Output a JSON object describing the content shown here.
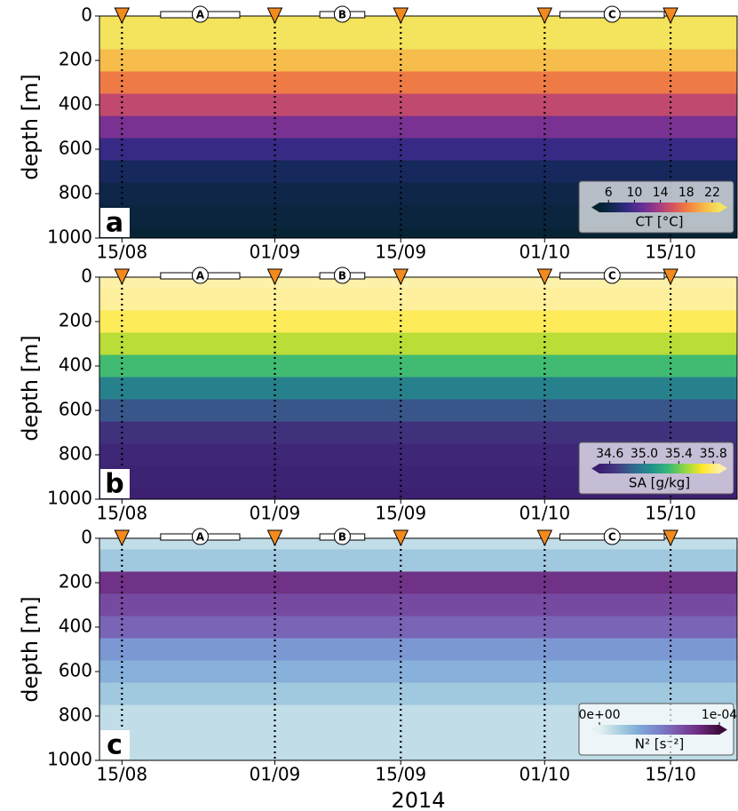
{
  "chart_data": [
    {
      "type": "heatmap",
      "panel_label": "a",
      "ylabel": "depth [m]",
      "xlim": [
        224.5,
        295.4
      ],
      "xticks": [
        {
          "value": 227,
          "label": "15/08"
        },
        {
          "value": 244,
          "label": "01/09"
        },
        {
          "value": 258,
          "label": "15/09"
        },
        {
          "value": 274,
          "label": "01/10"
        },
        {
          "value": 288,
          "label": "15/10"
        }
      ],
      "ylim": [
        0,
        1000
      ],
      "invert_y": true,
      "yticks": [
        0,
        200,
        400,
        600,
        800,
        1000
      ],
      "y": [
        0,
        100,
        200,
        300,
        400,
        500,
        600,
        700,
        800,
        900,
        1000
      ],
      "values": [
        24,
        23.5,
        21,
        18,
        15,
        12,
        9,
        7,
        6,
        5.5,
        5
      ],
      "events": [
        227,
        244,
        258,
        274,
        288
      ],
      "periods": [
        {
          "label": "A",
          "start": 231.3,
          "end": 240.1
        },
        {
          "label": "B",
          "start": 249,
          "end": 254
        },
        {
          "label": "C",
          "start": 275.7,
          "end": 287.3
        }
      ],
      "colorbar": {
        "label": "CT [°C]",
        "clim": [
          4.6,
          23.1
        ],
        "ticks": [
          6,
          10,
          14,
          18,
          22
        ],
        "colormap": [
          "#04232e",
          "#16285a",
          "#3b2a8a",
          "#6e2f95",
          "#a53d80",
          "#d9575a",
          "#f3843f",
          "#f6b94a",
          "#f3e35d"
        ]
      }
    },
    {
      "type": "heatmap",
      "panel_label": "b",
      "ylabel": "depth [m]",
      "xlim": [
        224.5,
        295.4
      ],
      "xticks": [
        {
          "value": 227,
          "label": "15/08"
        },
        {
          "value": 244,
          "label": "01/09"
        },
        {
          "value": 258,
          "label": "15/09"
        },
        {
          "value": 274,
          "label": "01/10"
        },
        {
          "value": 288,
          "label": "15/10"
        }
      ],
      "ylim": [
        0,
        1000
      ],
      "invert_y": true,
      "yticks": [
        0,
        200,
        400,
        600,
        800,
        1000
      ],
      "y": [
        0,
        100,
        200,
        300,
        400,
        500,
        600,
        700,
        800,
        900,
        1000
      ],
      "values": [
        35.9,
        35.85,
        35.75,
        35.55,
        35.3,
        35.0,
        34.8,
        34.62,
        34.55,
        34.52,
        34.5
      ],
      "events": [
        227,
        244,
        258,
        274,
        288
      ],
      "periods": [
        {
          "label": "A",
          "start": 231.3,
          "end": 240.1
        },
        {
          "label": "B",
          "start": 249,
          "end": 254
        },
        {
          "label": "C",
          "start": 275.7,
          "end": 287.3
        }
      ],
      "colorbar": {
        "label": "SA [g/kg]",
        "clim": [
          34.48,
          35.87
        ],
        "ticks": [
          34.6,
          {
            "value": 35,
            "label": "35.0"
          },
          35.4,
          35.8
        ],
        "colormap": [
          "#3b1d6f",
          "#443a83",
          "#31688e",
          "#21918c",
          "#35b779",
          "#90d743",
          "#fde725",
          "#fdf0a8"
        ]
      }
    },
    {
      "type": "heatmap",
      "panel_label": "c",
      "ylabel": "depth [m]",
      "xlabel": "2014",
      "xlim": [
        224.5,
        295.4
      ],
      "xticks": [
        {
          "value": 227,
          "label": "15/08"
        },
        {
          "value": 244,
          "label": "01/09"
        },
        {
          "value": 258,
          "label": "15/09"
        },
        {
          "value": 274,
          "label": "01/10"
        },
        {
          "value": 288,
          "label": "15/10"
        }
      ],
      "ylim": [
        0,
        1000
      ],
      "invert_y": true,
      "yticks": [
        0,
        200,
        400,
        600,
        800,
        1000
      ],
      "y": [
        0,
        100,
        200,
        300,
        400,
        500,
        600,
        700,
        800,
        900,
        1000
      ],
      "values": [
        1e-05,
        2e-05,
        8e-05,
        7e-05,
        6e-05,
        4e-05,
        3e-05,
        2e-05,
        1e-05,
        1e-05,
        1e-05
      ],
      "events": [
        227,
        244,
        258,
        274,
        288
      ],
      "periods": [
        {
          "label": "A",
          "start": 231.3,
          "end": 240.1
        },
        {
          "label": "B",
          "start": 249,
          "end": 254
        },
        {
          "label": "C",
          "start": 275.7,
          "end": 287.3
        }
      ],
      "colorbar": {
        "label": "N² [s⁻²]",
        "clim": [
          0,
          0.0001
        ],
        "ticks": [
          {
            "value": 0,
            "label": "0e+00"
          },
          {
            "value": 0.0001,
            "label": "1e-04"
          }
        ],
        "colormap": [
          "#e6f1f1",
          "#a9d0e0",
          "#7ea8d8",
          "#7a7fc9",
          "#7a52a9",
          "#6c2a7f",
          "#3c0b3b"
        ]
      }
    }
  ]
}
